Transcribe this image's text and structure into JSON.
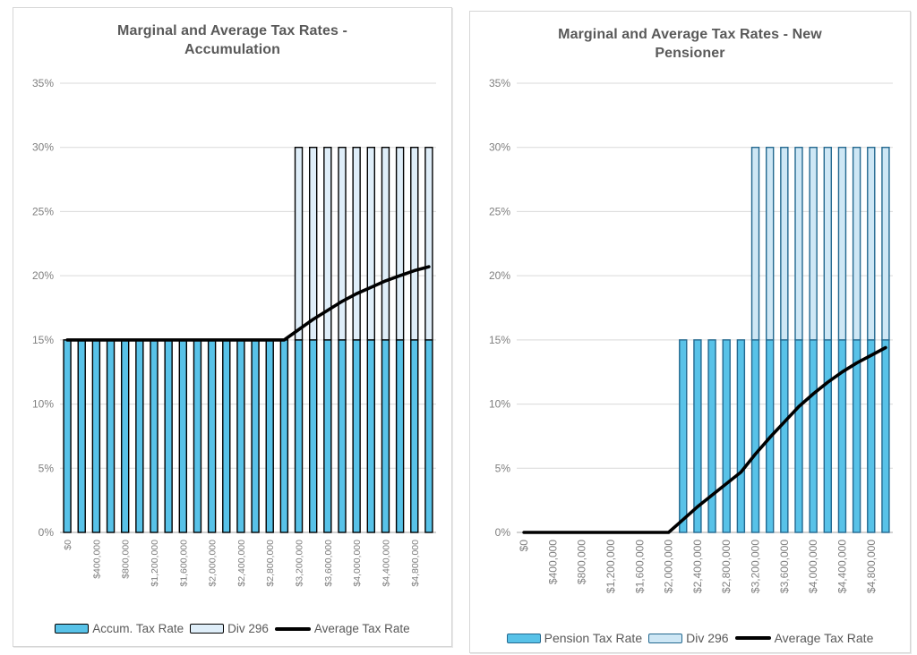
{
  "charts": [
    {
      "panel": "accumulation",
      "legend_items": [
        {
          "label": "Accum. Tax Rate",
          "swatch": "bar",
          "fill": "#58C2E8",
          "border": "#000000"
        },
        {
          "label": "Div 296",
          "swatch": "bar",
          "fill": "#DFEEF9",
          "border": "#000000"
        },
        {
          "label": "Average Tax Rate",
          "swatch": "line",
          "color": "#000000"
        }
      ],
      "x_label_font": 10.5
    },
    {
      "panel": "new-pensioner",
      "legend_items": [
        {
          "label": "Pension Tax Rate",
          "swatch": "bar",
          "fill": "#58C2E8",
          "border": "#23688F"
        },
        {
          "label": "Div 296",
          "swatch": "bar",
          "fill": "#CEE7F5",
          "border": "#23688F"
        },
        {
          "label": "Average Tax Rate",
          "swatch": "line",
          "color": "#000000"
        }
      ],
      "x_label_font": 12
    }
  ],
  "chart_data": [
    {
      "type": "bar",
      "title": "Marginal and Average Tax Rates - Accumulation",
      "xlabel": "",
      "ylabel": "",
      "ylim": [
        0,
        35
      ],
      "ytick_labels": [
        "0%",
        "5%",
        "10%",
        "15%",
        "20%",
        "25%",
        "30%",
        "35%"
      ],
      "grid": true,
      "legend_position": "bottom",
      "x_values": [
        0,
        200000,
        400000,
        600000,
        800000,
        1000000,
        1200000,
        1400000,
        1600000,
        1800000,
        2000000,
        2200000,
        2400000,
        2600000,
        2800000,
        3000000,
        3200000,
        3400000,
        3600000,
        3800000,
        4000000,
        4200000,
        4400000,
        4600000,
        4800000,
        5000000
      ],
      "x_tick_every": 2,
      "x_tick_labels": [
        "$0",
        "$400,000",
        "$800,000",
        "$1,200,000",
        "$1,600,000",
        "$2,000,000",
        "$2,400,000",
        "$2,800,000",
        "$3,200,000",
        "$3,600,000",
        "$4,000,000",
        "$4,400,000",
        "$4,800,000"
      ],
      "series": [
        {
          "name": "Accum. Tax Rate",
          "type": "bar",
          "fill": "#58C2E8",
          "border": "#000000",
          "base": 0,
          "values": [
            15,
            15,
            15,
            15,
            15,
            15,
            15,
            15,
            15,
            15,
            15,
            15,
            15,
            15,
            15,
            15,
            15,
            15,
            15,
            15,
            15,
            15,
            15,
            15,
            15,
            15
          ]
        },
        {
          "name": "Div 296",
          "type": "bar",
          "fill": "#DFEEF9",
          "border": "#000000",
          "base": 15,
          "values": [
            0,
            0,
            0,
            0,
            0,
            0,
            0,
            0,
            0,
            0,
            0,
            0,
            0,
            0,
            0,
            0,
            15,
            15,
            15,
            15,
            15,
            15,
            15,
            15,
            15,
            15
          ]
        },
        {
          "name": "Average Tax Rate",
          "type": "line",
          "color": "#000000",
          "width": 3.6,
          "values": [
            15,
            15,
            15,
            15,
            15,
            15,
            15,
            15,
            15,
            15,
            15,
            15,
            15,
            15,
            15,
            15,
            15.8,
            16.6,
            17.3,
            18.0,
            18.6,
            19.1,
            19.6,
            20.0,
            20.4,
            20.7
          ]
        }
      ]
    },
    {
      "type": "bar",
      "title": "Marginal and Average Tax Rates - New Pensioner",
      "xlabel": "",
      "ylabel": "",
      "ylim": [
        0,
        35
      ],
      "ytick_labels": [
        "0%",
        "5%",
        "10%",
        "15%",
        "20%",
        "25%",
        "30%",
        "35%"
      ],
      "grid": true,
      "legend_position": "bottom",
      "x_values": [
        0,
        200000,
        400000,
        600000,
        800000,
        1000000,
        1200000,
        1400000,
        1600000,
        1800000,
        2000000,
        2200000,
        2400000,
        2600000,
        2800000,
        3000000,
        3200000,
        3400000,
        3600000,
        3800000,
        4000000,
        4200000,
        4400000,
        4600000,
        4800000,
        5000000
      ],
      "x_tick_every": 2,
      "x_tick_labels": [
        "$0",
        "$400,000",
        "$800,000",
        "$1,200,000",
        "$1,600,000",
        "$2,000,000",
        "$2,400,000",
        "$2,800,000",
        "$3,200,000",
        "$3,600,000",
        "$4,000,000",
        "$4,400,000",
        "$4,800,000"
      ],
      "series": [
        {
          "name": "Pension Tax Rate",
          "type": "bar",
          "fill": "#58C2E8",
          "border": "#23688F",
          "base": 0,
          "values": [
            0,
            0,
            0,
            0,
            0,
            0,
            0,
            0,
            0,
            0,
            0,
            15,
            15,
            15,
            15,
            15,
            15,
            15,
            15,
            15,
            15,
            15,
            15,
            15,
            15,
            15
          ]
        },
        {
          "name": "Div 296",
          "type": "bar",
          "fill": "#CEE7F5",
          "border": "#23688F",
          "base": 15,
          "values": [
            0,
            0,
            0,
            0,
            0,
            0,
            0,
            0,
            0,
            0,
            0,
            0,
            0,
            0,
            0,
            0,
            15,
            15,
            15,
            15,
            15,
            15,
            15,
            15,
            15,
            15
          ]
        },
        {
          "name": "Average Tax Rate",
          "type": "line",
          "color": "#000000",
          "width": 3.6,
          "values": [
            0,
            0,
            0,
            0,
            0,
            0,
            0,
            0,
            0,
            0,
            0,
            1.0,
            2.0,
            2.9,
            3.8,
            4.7,
            6.1,
            7.4,
            8.6,
            9.8,
            10.8,
            11.7,
            12.5,
            13.2,
            13.8,
            14.4
          ]
        }
      ]
    }
  ],
  "style": {
    "gridline_color": "#d9d9d9",
    "axis_color": "#a6a6a6",
    "title_color": "#595959",
    "tick_label_color": "#7f7f7f"
  }
}
